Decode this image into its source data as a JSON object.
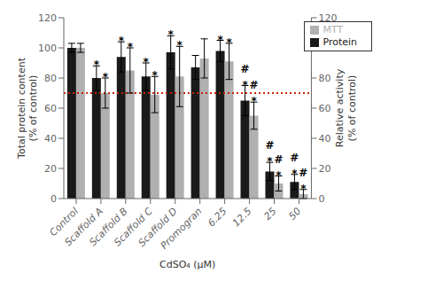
{
  "chart_data": {
    "type": "bar",
    "xlabel": "CdSO₄ (μM)",
    "ylabel": "Total protein content\n(% of control)",
    "y2label": "Relative activity\n(% of control)",
    "categories": [
      "Control",
      "Scaffold A",
      "Scaffold B",
      "Scaffold C",
      "Scaffold D",
      "Promogran",
      "6.25",
      "12.5",
      "25",
      "50"
    ],
    "series": [
      {
        "name": "Protein",
        "color": "#1a1a1a",
        "values": [
          100,
          80,
          94,
          81,
          97,
          87,
          98,
          65,
          18,
          11
        ],
        "errors": [
          3,
          8,
          10,
          9,
          11,
          8,
          7,
          10,
          6,
          5
        ]
      },
      {
        "name": "MTT",
        "color": "#b0b0b0",
        "values": [
          100,
          70,
          85,
          69,
          81,
          93,
          91,
          55,
          10,
          3
        ],
        "errors": [
          3,
          10,
          15,
          12,
          20,
          13,
          12,
          9,
          5,
          3
        ]
      }
    ],
    "ylim": [
      0,
      120
    ],
    "yticks": [
      0,
      20,
      40,
      60,
      80,
      100,
      120
    ],
    "y2lim": [
      0,
      120
    ],
    "y2ticks": [
      0,
      20,
      40,
      60,
      80,
      100,
      120
    ],
    "reference_lines": [
      {
        "value": 70,
        "color": "#cc2200",
        "line_style": "dotted"
      }
    ],
    "annotations": [
      {
        "text": "*",
        "series": "Protein",
        "category": "Scaffold A"
      },
      {
        "text": "*",
        "series": "Protein",
        "category": "Scaffold B"
      },
      {
        "text": "*",
        "series": "Protein",
        "category": "Scaffold C"
      },
      {
        "text": "*",
        "series": "Protein",
        "category": "Scaffold D"
      },
      {
        "text": "*",
        "series": "Protein",
        "category": "6.25"
      },
      {
        "text": "*",
        "series": "Protein",
        "category": "12.5"
      },
      {
        "text": "*",
        "series": "Protein",
        "category": "25"
      },
      {
        "text": "*",
        "series": "Protein",
        "category": "50"
      },
      {
        "text": "*",
        "series": "MTT",
        "category": "Scaffold A"
      },
      {
        "text": "*",
        "series": "MTT",
        "category": "Scaffold B"
      },
      {
        "text": "*",
        "series": "MTT",
        "category": "Scaffold C"
      },
      {
        "text": "*",
        "series": "MTT",
        "category": "Scaffold D"
      },
      {
        "text": "*",
        "series": "MTT",
        "category": "6.25"
      },
      {
        "text": "*",
        "series": "MTT",
        "category": "12.5"
      },
      {
        "text": "*",
        "series": "MTT",
        "category": "25"
      },
      {
        "text": "*",
        "series": "MTT",
        "category": "50"
      },
      {
        "text": "#",
        "series": "Protein",
        "category": "12.5"
      },
      {
        "text": "#",
        "series": "Protein",
        "category": "25"
      },
      {
        "text": "#",
        "series": "Protein",
        "category": "50"
      },
      {
        "text": "#",
        "series": "MTT",
        "category": "12.5"
      },
      {
        "text": "#",
        "series": "MTT",
        "category": "25"
      },
      {
        "text": "#",
        "series": "MTT",
        "category": "50"
      }
    ],
    "legend": "upper right",
    "grid": false
  }
}
